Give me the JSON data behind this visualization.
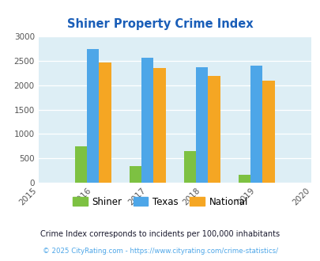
{
  "title": "Shiner Property Crime Index",
  "years": [
    2015,
    2016,
    2017,
    2018,
    2019,
    2020
  ],
  "bar_years": [
    2016,
    2017,
    2018,
    2019
  ],
  "shiner": [
    750,
    340,
    650,
    160
  ],
  "texas": [
    2750,
    2570,
    2370,
    2400
  ],
  "national": [
    2470,
    2360,
    2190,
    2100
  ],
  "shiner_color": "#7dc142",
  "texas_color": "#4da6e8",
  "national_color": "#f5a623",
  "bg_color": "#ddeef5",
  "ylim": [
    0,
    3000
  ],
  "yticks": [
    0,
    500,
    1000,
    1500,
    2000,
    2500,
    3000
  ],
  "legend_labels": [
    "Shiner",
    "Texas",
    "National"
  ],
  "footnote1": "Crime Index corresponds to incidents per 100,000 inhabitants",
  "footnote2": "© 2025 CityRating.com - https://www.cityrating.com/crime-statistics/",
  "title_color": "#1a5eb8",
  "footnote1_color": "#1a1a2e",
  "footnote2_color": "#4da6e8",
  "bar_width": 0.22,
  "fig_width": 4.06,
  "fig_height": 3.3,
  "dpi": 100
}
